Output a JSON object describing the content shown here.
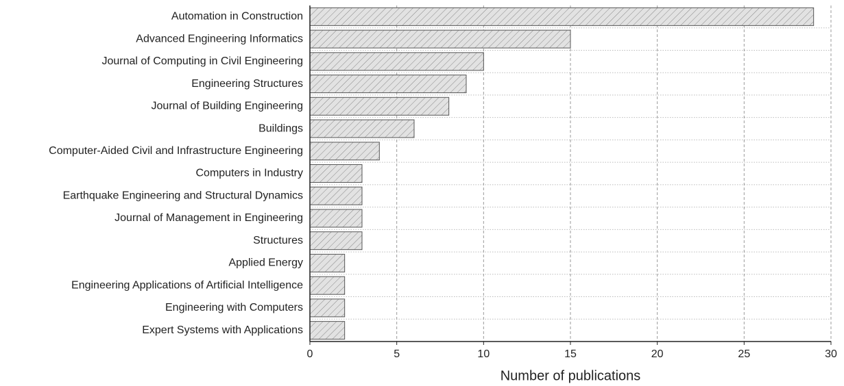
{
  "chart_data": {
    "type": "barh",
    "xlabel": "Number of publications",
    "categories": [
      "Automation in Construction",
      "Advanced Engineering Informatics",
      "Journal of Computing in Civil Engineering",
      "Engineering Structures",
      "Journal of Building Engineering",
      "Buildings",
      "Computer-Aided Civil and Infrastructure Engineering",
      "Computers in Industry",
      "Earthquake Engineering and Structural Dynamics",
      "Journal of Management in Engineering",
      "Structures",
      "Applied Energy",
      "Engineering Applications of Artificial Intelligence",
      "Engineering with Computers",
      "Expert Systems with Applications"
    ],
    "values": [
      29,
      15,
      10,
      9,
      8,
      6,
      4,
      3,
      3,
      3,
      3,
      2,
      2,
      2,
      2
    ],
    "color": "#e2e2e2",
    "xlim": [
      0,
      30
    ],
    "xticks": [
      0,
      5,
      10,
      15,
      20,
      25,
      30
    ],
    "grid": true
  }
}
